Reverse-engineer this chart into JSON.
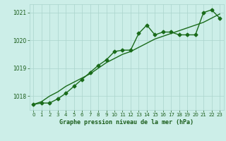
{
  "x": [
    0,
    1,
    2,
    3,
    4,
    5,
    6,
    7,
    8,
    9,
    10,
    11,
    12,
    13,
    14,
    15,
    16,
    17,
    18,
    19,
    20,
    21,
    22,
    23
  ],
  "y_main": [
    1017.7,
    1017.75,
    1017.75,
    1017.9,
    1018.1,
    1018.35,
    1018.6,
    1018.85,
    1019.1,
    1019.3,
    1019.6,
    1019.65,
    1019.65,
    1020.25,
    1020.55,
    1020.2,
    1020.3,
    1020.3,
    1020.2,
    1020.2,
    1020.2,
    1021.0,
    1021.1,
    1020.8
  ],
  "y_trend": [
    1017.7,
    1017.8,
    1018.0,
    1018.15,
    1018.35,
    1018.5,
    1018.65,
    1018.8,
    1019.0,
    1019.2,
    1019.35,
    1019.5,
    1019.6,
    1019.75,
    1019.9,
    1020.05,
    1020.15,
    1020.25,
    1020.35,
    1020.45,
    1020.55,
    1020.65,
    1020.8,
    1020.95
  ],
  "ylim": [
    1017.5,
    1021.3
  ],
  "xlim": [
    -0.5,
    23.5
  ],
  "yticks": [
    1018,
    1019,
    1020,
    1021
  ],
  "xticks": [
    0,
    1,
    2,
    3,
    4,
    5,
    6,
    7,
    8,
    9,
    10,
    11,
    12,
    13,
    14,
    15,
    16,
    17,
    18,
    19,
    20,
    21,
    22,
    23
  ],
  "line_color": "#1a6b1a",
  "bg_color": "#cceee8",
  "grid_color": "#aad4cc",
  "xlabel": "Graphe pression niveau de la mer (hPa)",
  "xlabel_color": "#1a5c1a",
  "tick_color": "#1a5c1a",
  "marker": "D",
  "marker_size": 2.5,
  "line_width": 1.0,
  "fig_width": 3.2,
  "fig_height": 2.0,
  "dpi": 100
}
